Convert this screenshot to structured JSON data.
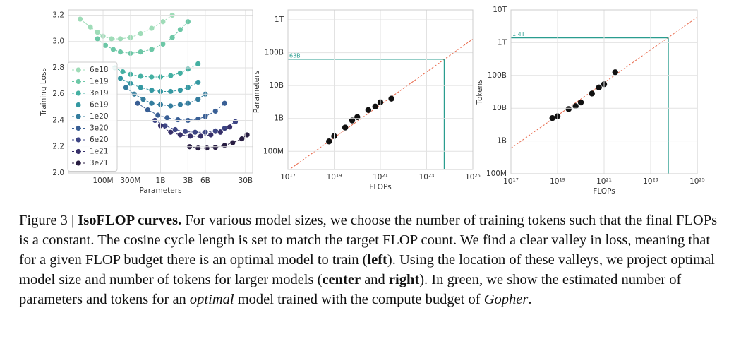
{
  "chart_data": [
    {
      "type": "line",
      "xlabel": "Parameters",
      "ylabel": "Training Loss",
      "xscale": "log",
      "grid": true,
      "legend": "upper left",
      "marker": true,
      "line_style": "dashed",
      "xlim": [
        25000000,
        40000000000
      ],
      "ylim": [
        2.0,
        3.24
      ],
      "xticks": [
        {
          "value": 100000000,
          "label": "100M"
        },
        {
          "value": 300000000,
          "label": "300M"
        },
        {
          "value": 1000000000,
          "label": "1B"
        },
        {
          "value": 3000000000,
          "label": "3B"
        },
        {
          "value": 6000000000,
          "label": "6B"
        },
        {
          "value": 30000000000,
          "label": "30B"
        }
      ],
      "yticks": [
        {
          "value": 2,
          "label": "2.0"
        },
        2.2,
        2.4,
        2.6,
        2.8,
        {
          "value": 3,
          "label": "3.0"
        },
        3.2
      ],
      "series": [
        {
          "name": "6e18",
          "color": "#9fdcb8",
          "x": [
            40000000,
            60000000,
            80000000,
            100000000,
            140000000,
            200000000,
            300000000,
            450000000,
            700000000,
            1100000000,
            1600000000
          ],
          "values": [
            3.17,
            3.11,
            3.07,
            3.04,
            3.02,
            3.02,
            3.03,
            3.06,
            3.1,
            3.15,
            3.2
          ]
        },
        {
          "name": "1e19",
          "color": "#6cc7a6",
          "x": [
            80000000,
            110000000,
            150000000,
            200000000,
            300000000,
            450000000,
            700000000,
            1100000000,
            1600000000,
            2200000000,
            3000000000
          ],
          "values": [
            3.02,
            2.97,
            2.94,
            2.92,
            2.91,
            2.92,
            2.94,
            2.98,
            3.03,
            3.09,
            3.15
          ]
        },
        {
          "name": "3e19",
          "color": "#44b0a2",
          "x": [
            160000000,
            220000000,
            300000000,
            450000000,
            700000000,
            1000000000,
            1500000000,
            2200000000,
            3000000000,
            4500000000
          ],
          "values": [
            2.8,
            2.77,
            2.75,
            2.735,
            2.73,
            2.73,
            2.74,
            2.76,
            2.79,
            2.83
          ]
        },
        {
          "name": "6e19",
          "color": "#3498a2",
          "x": [
            200000000,
            300000000,
            450000000,
            700000000,
            1000000000,
            1500000000,
            2200000000,
            3000000000,
            4500000000
          ],
          "values": [
            2.72,
            2.68,
            2.65,
            2.63,
            2.62,
            2.62,
            2.63,
            2.65,
            2.69
          ]
        },
        {
          "name": "1e20",
          "color": "#347d9e",
          "x": [
            250000000,
            350000000,
            500000000,
            700000000,
            1000000000,
            1500000000,
            2200000000,
            3000000000,
            4500000000,
            6000000000
          ],
          "values": [
            2.65,
            2.6,
            2.56,
            2.53,
            2.52,
            2.51,
            2.52,
            2.53,
            2.56,
            2.6
          ]
        },
        {
          "name": "3e20",
          "color": "#395f95",
          "x": [
            400000000,
            600000000,
            900000000,
            1300000000,
            2000000000,
            3000000000,
            4500000000,
            6000000000,
            9000000000,
            13000000000
          ],
          "values": [
            2.53,
            2.48,
            2.44,
            2.42,
            2.405,
            2.4,
            2.41,
            2.43,
            2.47,
            2.53
          ]
        },
        {
          "name": "6e20",
          "color": "#3d4584",
          "x": [
            800000000,
            1200000000,
            1800000000,
            2700000000,
            4000000000,
            6000000000,
            9000000000,
            13000000000,
            20000000000
          ],
          "values": [
            2.4,
            2.36,
            2.33,
            2.315,
            2.31,
            2.31,
            2.32,
            2.34,
            2.39
          ]
        },
        {
          "name": "1e21",
          "color": "#37306a",
          "x": [
            1000000000,
            1500000000,
            2200000000,
            3300000000,
            5000000000,
            7500000000,
            11000000000,
            16000000000
          ],
          "values": [
            2.36,
            2.31,
            2.29,
            2.28,
            2.28,
            2.29,
            2.31,
            2.35
          ]
        },
        {
          "name": "3e21",
          "color": "#281d42",
          "x": [
            3200000000,
            4500000000,
            6400000000,
            9000000000,
            13000000000,
            18000000000,
            26000000000,
            32000000000
          ],
          "values": [
            2.2,
            2.19,
            2.19,
            2.195,
            2.21,
            2.23,
            2.26,
            2.29
          ]
        }
      ]
    },
    {
      "type": "scatter",
      "xlabel": "FLOPs",
      "ylabel": "Parameters",
      "xscale": "log",
      "yscale": "log",
      "grid": true,
      "color": "#111111",
      "xlim": [
        1e+17,
        1e+25
      ],
      "ylim": [
        28000000,
        2000000000000
      ],
      "xticks": [
        {
          "value": 1e+17,
          "label": "10¹⁷"
        },
        {
          "value": 1e+19,
          "label": "10¹⁹"
        },
        {
          "value": 1e+21,
          "label": "10²¹"
        },
        {
          "value": 1e+23,
          "label": "10²³"
        },
        {
          "value": 1e+25,
          "label": "10²⁵"
        }
      ],
      "yticks": [
        {
          "value": 100000000,
          "label": "100M"
        },
        {
          "value": 1000000000,
          "label": "1B"
        },
        {
          "value": 10000000000,
          "label": "10B"
        },
        {
          "value": 100000000000,
          "label": "100B"
        },
        {
          "value": 1000000000000,
          "label": "1T"
        }
      ],
      "x": [
        6e+18,
        1e+19,
        3e+19,
        6e+19,
        1e+20,
        3e+20,
        6e+20,
        1e+21,
        3e+21
      ],
      "values": [
        200000000,
        290000000,
        530000000,
        870000000,
        1100000000,
        1800000000,
        2300000000,
        3100000000,
        4000000000
      ],
      "fit": {
        "color": "#e8684a",
        "x": [
          1e+17,
          1e+25
        ],
        "values": [
          26000000,
          260000000000
        ]
      },
      "annotation": {
        "label": "63B",
        "color": "#2a9d8f",
        "x": 5.76e+23,
        "y": 63000000000
      }
    },
    {
      "type": "scatter",
      "xlabel": "FLOPs",
      "ylabel": "Tokens",
      "xscale": "log",
      "yscale": "log",
      "grid": true,
      "color": "#111111",
      "xlim": [
        1e+17,
        1e+25
      ],
      "ylim": [
        100000000,
        10000000000000
      ],
      "xticks": [
        {
          "value": 1e+17,
          "label": "10¹⁷"
        },
        {
          "value": 1e+19,
          "label": "10¹⁹"
        },
        {
          "value": 1e+21,
          "label": "10²¹"
        },
        {
          "value": 1e+23,
          "label": "10²³"
        },
        {
          "value": 1e+25,
          "label": "10²⁵"
        }
      ],
      "yticks": [
        {
          "value": 100000000,
          "label": "100M"
        },
        {
          "value": 1000000000,
          "label": "1B"
        },
        {
          "value": 10000000000,
          "label": "10B"
        },
        {
          "value": 100000000000,
          "label": "100B"
        },
        {
          "value": 1000000000000,
          "label": "1T"
        },
        {
          "value": 10000000000000,
          "label": "10T"
        }
      ],
      "x": [
        6e+18,
        1e+19,
        3e+19,
        6e+19,
        1e+20,
        3e+20,
        6e+20,
        1e+21,
        3e+21
      ],
      "values": [
        5000000000,
        5700000000,
        9400000000,
        11500000000,
        15000000000,
        28000000000,
        43000000000,
        54000000000,
        125000000000
      ],
      "fit": {
        "color": "#e8684a",
        "x": [
          1e+17,
          1e+25
        ],
        "values": [
          600000000,
          6000000000000
        ]
      },
      "annotation": {
        "label": "1.4T",
        "color": "#2a9d8f",
        "x": 5.76e+23,
        "y": 1400000000000
      }
    }
  ],
  "caption": [
    {
      "text": "Figure 3 | "
    },
    {
      "text": "IsoFLOP curves.",
      "bold": true
    },
    {
      "text": " For various model sizes, we choose the number of training tokens such that the final FLOPs is a constant. The cosine cycle length is set to match the target FLOP count. We find a clear valley in loss, meaning that for a given FLOP budget there is an optimal model to train ("
    },
    {
      "text": "left",
      "bold": true
    },
    {
      "text": "). Using the location of these valleys, we project optimal model size and number of tokens for larger models ("
    },
    {
      "text": "center",
      "bold": true
    },
    {
      "text": " and "
    },
    {
      "text": "right",
      "bold": true
    },
    {
      "text": "). In green, we show the estimated number of parameters and tokens for an "
    },
    {
      "text": "optimal",
      "italic": true
    },
    {
      "text": " model trained with the compute budget of "
    },
    {
      "text": "Gopher",
      "italic": true
    },
    {
      "text": "."
    }
  ]
}
